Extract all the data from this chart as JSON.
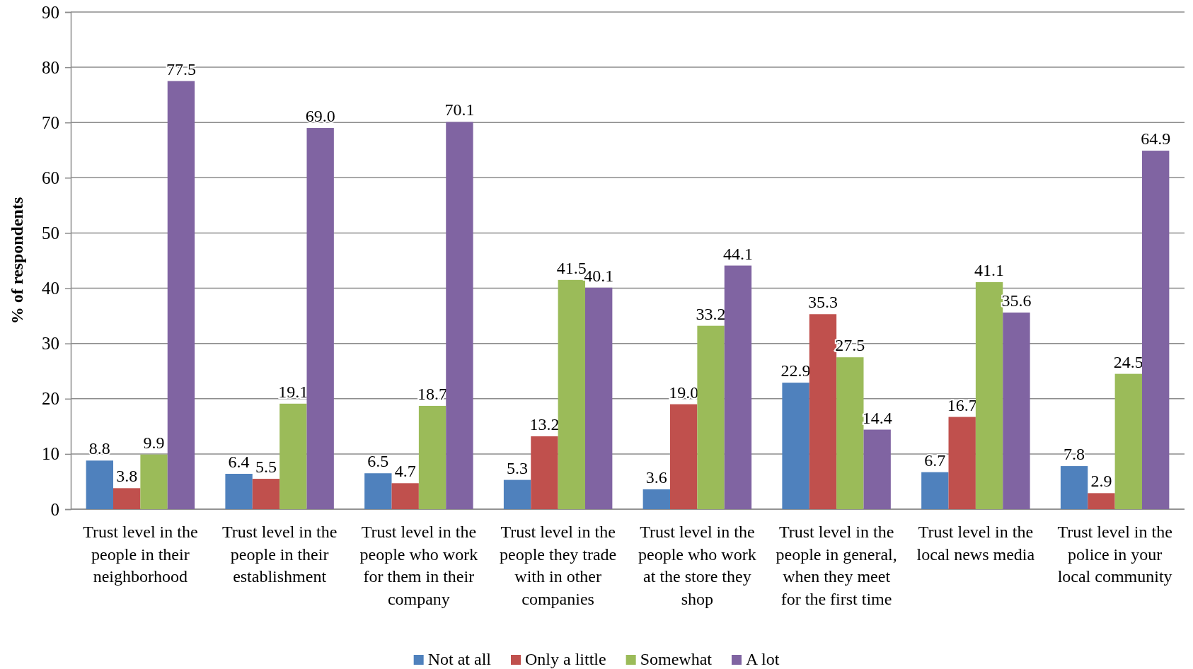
{
  "chart_data": {
    "type": "bar",
    "ylabel": "% of respondents",
    "categories": [
      "Trust level in the people in their neighborhood",
      "Trust level in the people in their establishment",
      "Trust level in the people who work for them in their company",
      "Trust level in the people they trade with in other companies",
      "Trust level in the people who work at the store they shop",
      "Trust level in the people in general, when they meet for the first time",
      "Trust level in the local news media",
      "Trust level in the police in your local community"
    ],
    "series": [
      {
        "name": "Not at all",
        "color": "#4f81bd",
        "values": [
          8.8,
          6.4,
          6.5,
          5.3,
          3.6,
          22.9,
          6.7,
          7.8
        ],
        "value_labels": [
          "8.8",
          "6.4",
          "6.5",
          "5.3",
          "3.6",
          "22.9",
          "6.7",
          "7.8"
        ]
      },
      {
        "name": "Only a little",
        "color": "#c0504d",
        "values": [
          3.8,
          5.5,
          4.7,
          13.2,
          19,
          35.3,
          16.7,
          2.9
        ],
        "value_labels": [
          "3.8",
          "5.5",
          "4.7",
          "13.2",
          "19.0",
          "35.3",
          "16.7",
          "2.9"
        ]
      },
      {
        "name": "Somewhat",
        "color": "#9bbb59",
        "values": [
          9.9,
          19.1,
          18.7,
          41.5,
          33.2,
          27.5,
          41.1,
          24.5
        ],
        "value_labels": [
          "9.9",
          "19.1",
          "18.7",
          "41.5",
          "33.2",
          "27.5",
          "41.1",
          "24.5"
        ]
      },
      {
        "name": "A lot",
        "color": "#8064a2",
        "values": [
          77.5,
          69,
          70.1,
          40.1,
          44.1,
          14.4,
          35.6,
          64.9
        ],
        "value_labels": [
          "77.5",
          "69.0",
          "70.1",
          "40.1",
          "44.1",
          "14.4",
          "35.6",
          "64.9"
        ]
      }
    ],
    "ylim": [
      0,
      90
    ],
    "yticks": [
      0,
      10,
      20,
      30,
      40,
      50,
      60,
      70,
      80,
      90
    ],
    "grid": "y",
    "legend": "bottom"
  }
}
